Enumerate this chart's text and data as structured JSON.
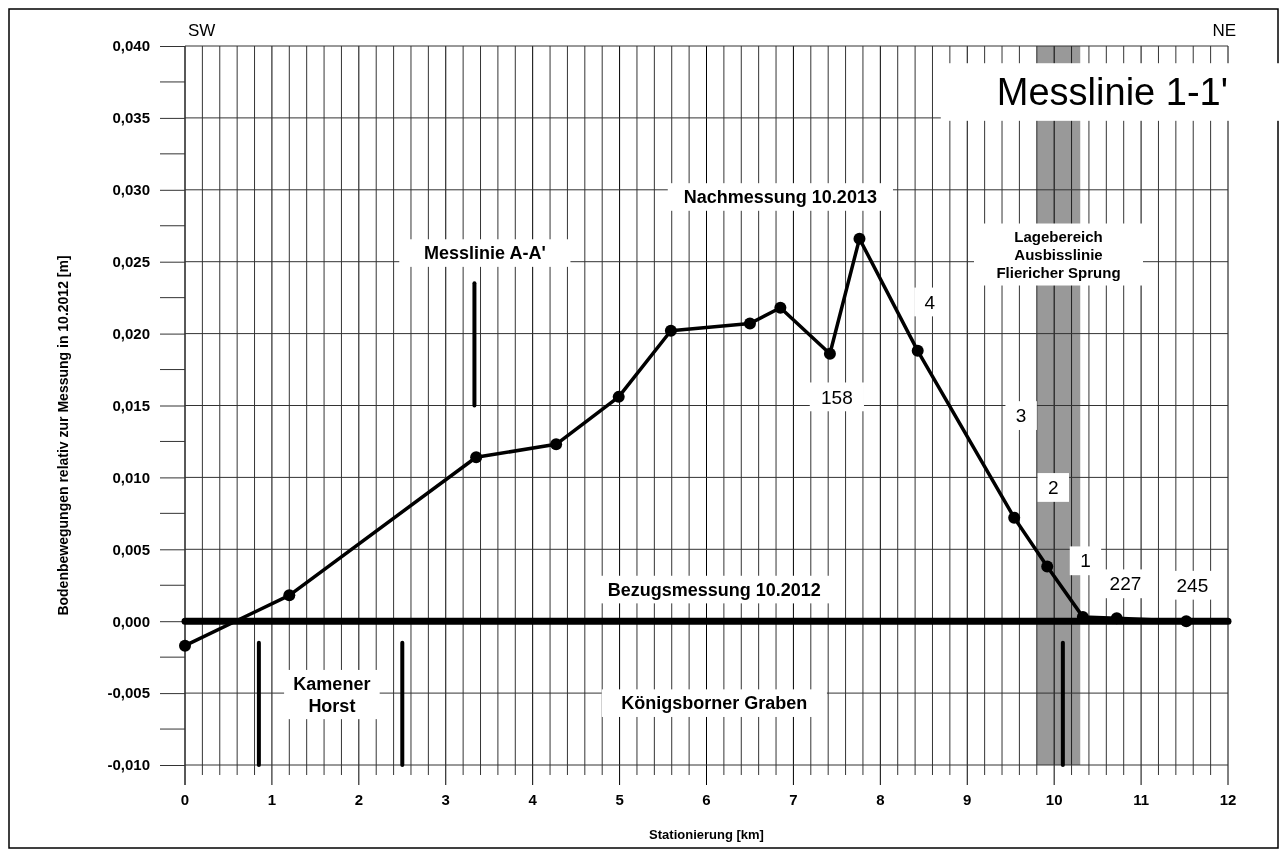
{
  "chart_data": {
    "type": "line",
    "title": "Messlinie 1-1'",
    "xlabel": "Stationierung [km]",
    "ylabel": "Bodenbewegungen relativ zur Messung in 10.2012 [m]",
    "xlim": [
      0,
      12
    ],
    "ylim": [
      -0.01,
      0.04
    ],
    "xticks": [
      0,
      {
        "value": 0.2,
        "label": null
      },
      {
        "value": 0.4,
        "label": null
      },
      {
        "value": 0.6,
        "label": null
      },
      {
        "value": 0.8,
        "label": null
      },
      1,
      {
        "value": 1.2,
        "label": null
      },
      {
        "value": 1.4,
        "label": null
      },
      {
        "value": 1.6,
        "label": null
      },
      {
        "value": 1.8,
        "label": null
      },
      2,
      {
        "value": 2.2,
        "label": null
      },
      {
        "value": 2.4,
        "label": null
      },
      {
        "value": 2.6,
        "label": null
      },
      {
        "value": 2.8,
        "label": null
      },
      3,
      {
        "value": 3.2,
        "label": null
      },
      {
        "value": 3.4,
        "label": null
      },
      {
        "value": 3.6,
        "label": null
      },
      {
        "value": 3.8,
        "label": null
      },
      4,
      {
        "value": 4.2,
        "label": null
      },
      {
        "value": 4.4,
        "label": null
      },
      {
        "value": 4.6,
        "label": null
      },
      {
        "value": 4.8,
        "label": null
      },
      5,
      {
        "value": 5.2,
        "label": null
      },
      {
        "value": 5.4,
        "label": null
      },
      {
        "value": 5.6,
        "label": null
      },
      {
        "value": 5.8,
        "label": null
      },
      6,
      {
        "value": 6.2,
        "label": null
      },
      {
        "value": 6.4,
        "label": null
      },
      {
        "value": 6.6,
        "label": null
      },
      {
        "value": 6.8,
        "label": null
      },
      7,
      {
        "value": 7.2,
        "label": null
      },
      {
        "value": 7.4,
        "label": null
      },
      {
        "value": 7.6,
        "label": null
      },
      {
        "value": 7.8,
        "label": null
      },
      8,
      {
        "value": 8.2,
        "label": null
      },
      {
        "value": 8.4,
        "label": null
      },
      {
        "value": 8.6,
        "label": null
      },
      {
        "value": 8.8,
        "label": null
      },
      9,
      {
        "value": 9.2,
        "label": null
      },
      {
        "value": 9.4,
        "label": null
      },
      {
        "value": 9.6,
        "label": null
      },
      {
        "value": 9.8,
        "label": null
      },
      10,
      {
        "value": 10.2,
        "label": null
      },
      {
        "value": 10.4,
        "label": null
      },
      {
        "value": 10.6,
        "label": null
      },
      {
        "value": 10.8,
        "label": null
      },
      11,
      {
        "value": 11.2,
        "label": null
      },
      {
        "value": 11.4,
        "label": null
      },
      {
        "value": 11.6,
        "label": null
      },
      {
        "value": 11.8,
        "label": null
      },
      12
    ],
    "yticks": [
      {
        "value": -0.01,
        "label": "-0,010"
      },
      {
        "value": -0.005,
        "label": "-0,005"
      },
      {
        "value": 0,
        "label": "0,000"
      },
      {
        "value": 0.005,
        "label": "0,005"
      },
      {
        "value": 0.01,
        "label": "0,010"
      },
      {
        "value": 0.015,
        "label": "0,015"
      },
      {
        "value": 0.02,
        "label": "0,020"
      },
      {
        "value": 0.025,
        "label": "0,025"
      },
      {
        "value": 0.03,
        "label": "0,030"
      },
      {
        "value": 0.035,
        "label": "0,035"
      },
      {
        "value": 0.04,
        "label": "0,040"
      }
    ],
    "grid": true,
    "series": [
      {
        "name": "Nachmessung 10.2013",
        "color": "#000000",
        "marker": "circle",
        "x": [
          0,
          1.2,
          3.35,
          4.27,
          4.99,
          5.59,
          6.5,
          6.85,
          7.42,
          7.76,
          8.43,
          9.54,
          9.92,
          10.33,
          10.72,
          11.52
        ],
        "values": [
          -0.0017,
          0.0018,
          0.0114,
          0.0123,
          0.0156,
          0.0202,
          0.0207,
          0.0218,
          0.0186,
          0.0266,
          0.0188,
          0.0072,
          0.0038,
          0.0003,
          0.0002,
          0.0
        ]
      },
      {
        "name": "Bezugsmessung 10.2012",
        "color": "#000000",
        "marker": "none",
        "x": [
          0,
          12
        ],
        "values": [
          0,
          0
        ]
      },
      {
        "color": "#000000",
        "marker": "none",
        "x": [
          3.33,
          3.33
        ],
        "values": [
          0.015,
          0.0235
        ]
      },
      {
        "color": "#000000",
        "marker": "none",
        "x": [
          0.85,
          0.85
        ],
        "values": [
          -0.0015,
          -0.01
        ]
      },
      {
        "color": "#000000",
        "marker": "none",
        "x": [
          2.5,
          2.5
        ],
        "values": [
          -0.0015,
          -0.01
        ]
      },
      {
        "color": "#000000",
        "marker": "none",
        "x": [
          10.1,
          10.1
        ],
        "values": [
          -0.0015,
          -0.01
        ]
      }
    ],
    "bands": [
      {
        "axis": "x",
        "from": 9.8,
        "to": 10.3,
        "label": "Lagebereich\nAusbisslinie\nFliericher Sprung",
        "color": "#999999"
      }
    ],
    "annotations": [
      "SW",
      "NE",
      "Messlinie A-A'",
      "158",
      "227",
      "245",
      "Kamener\nHorst",
      "Königsborner Graben",
      {
        "text": "4",
        "x": 8.57,
        "y": 0.0222
      },
      {
        "text": "3",
        "x": 9.62,
        "y": 0.0143
      },
      {
        "text": "2",
        "x": 9.99,
        "y": 0.0093
      },
      {
        "text": "1",
        "x": 10.36,
        "y": 0.0042
      }
    ]
  }
}
